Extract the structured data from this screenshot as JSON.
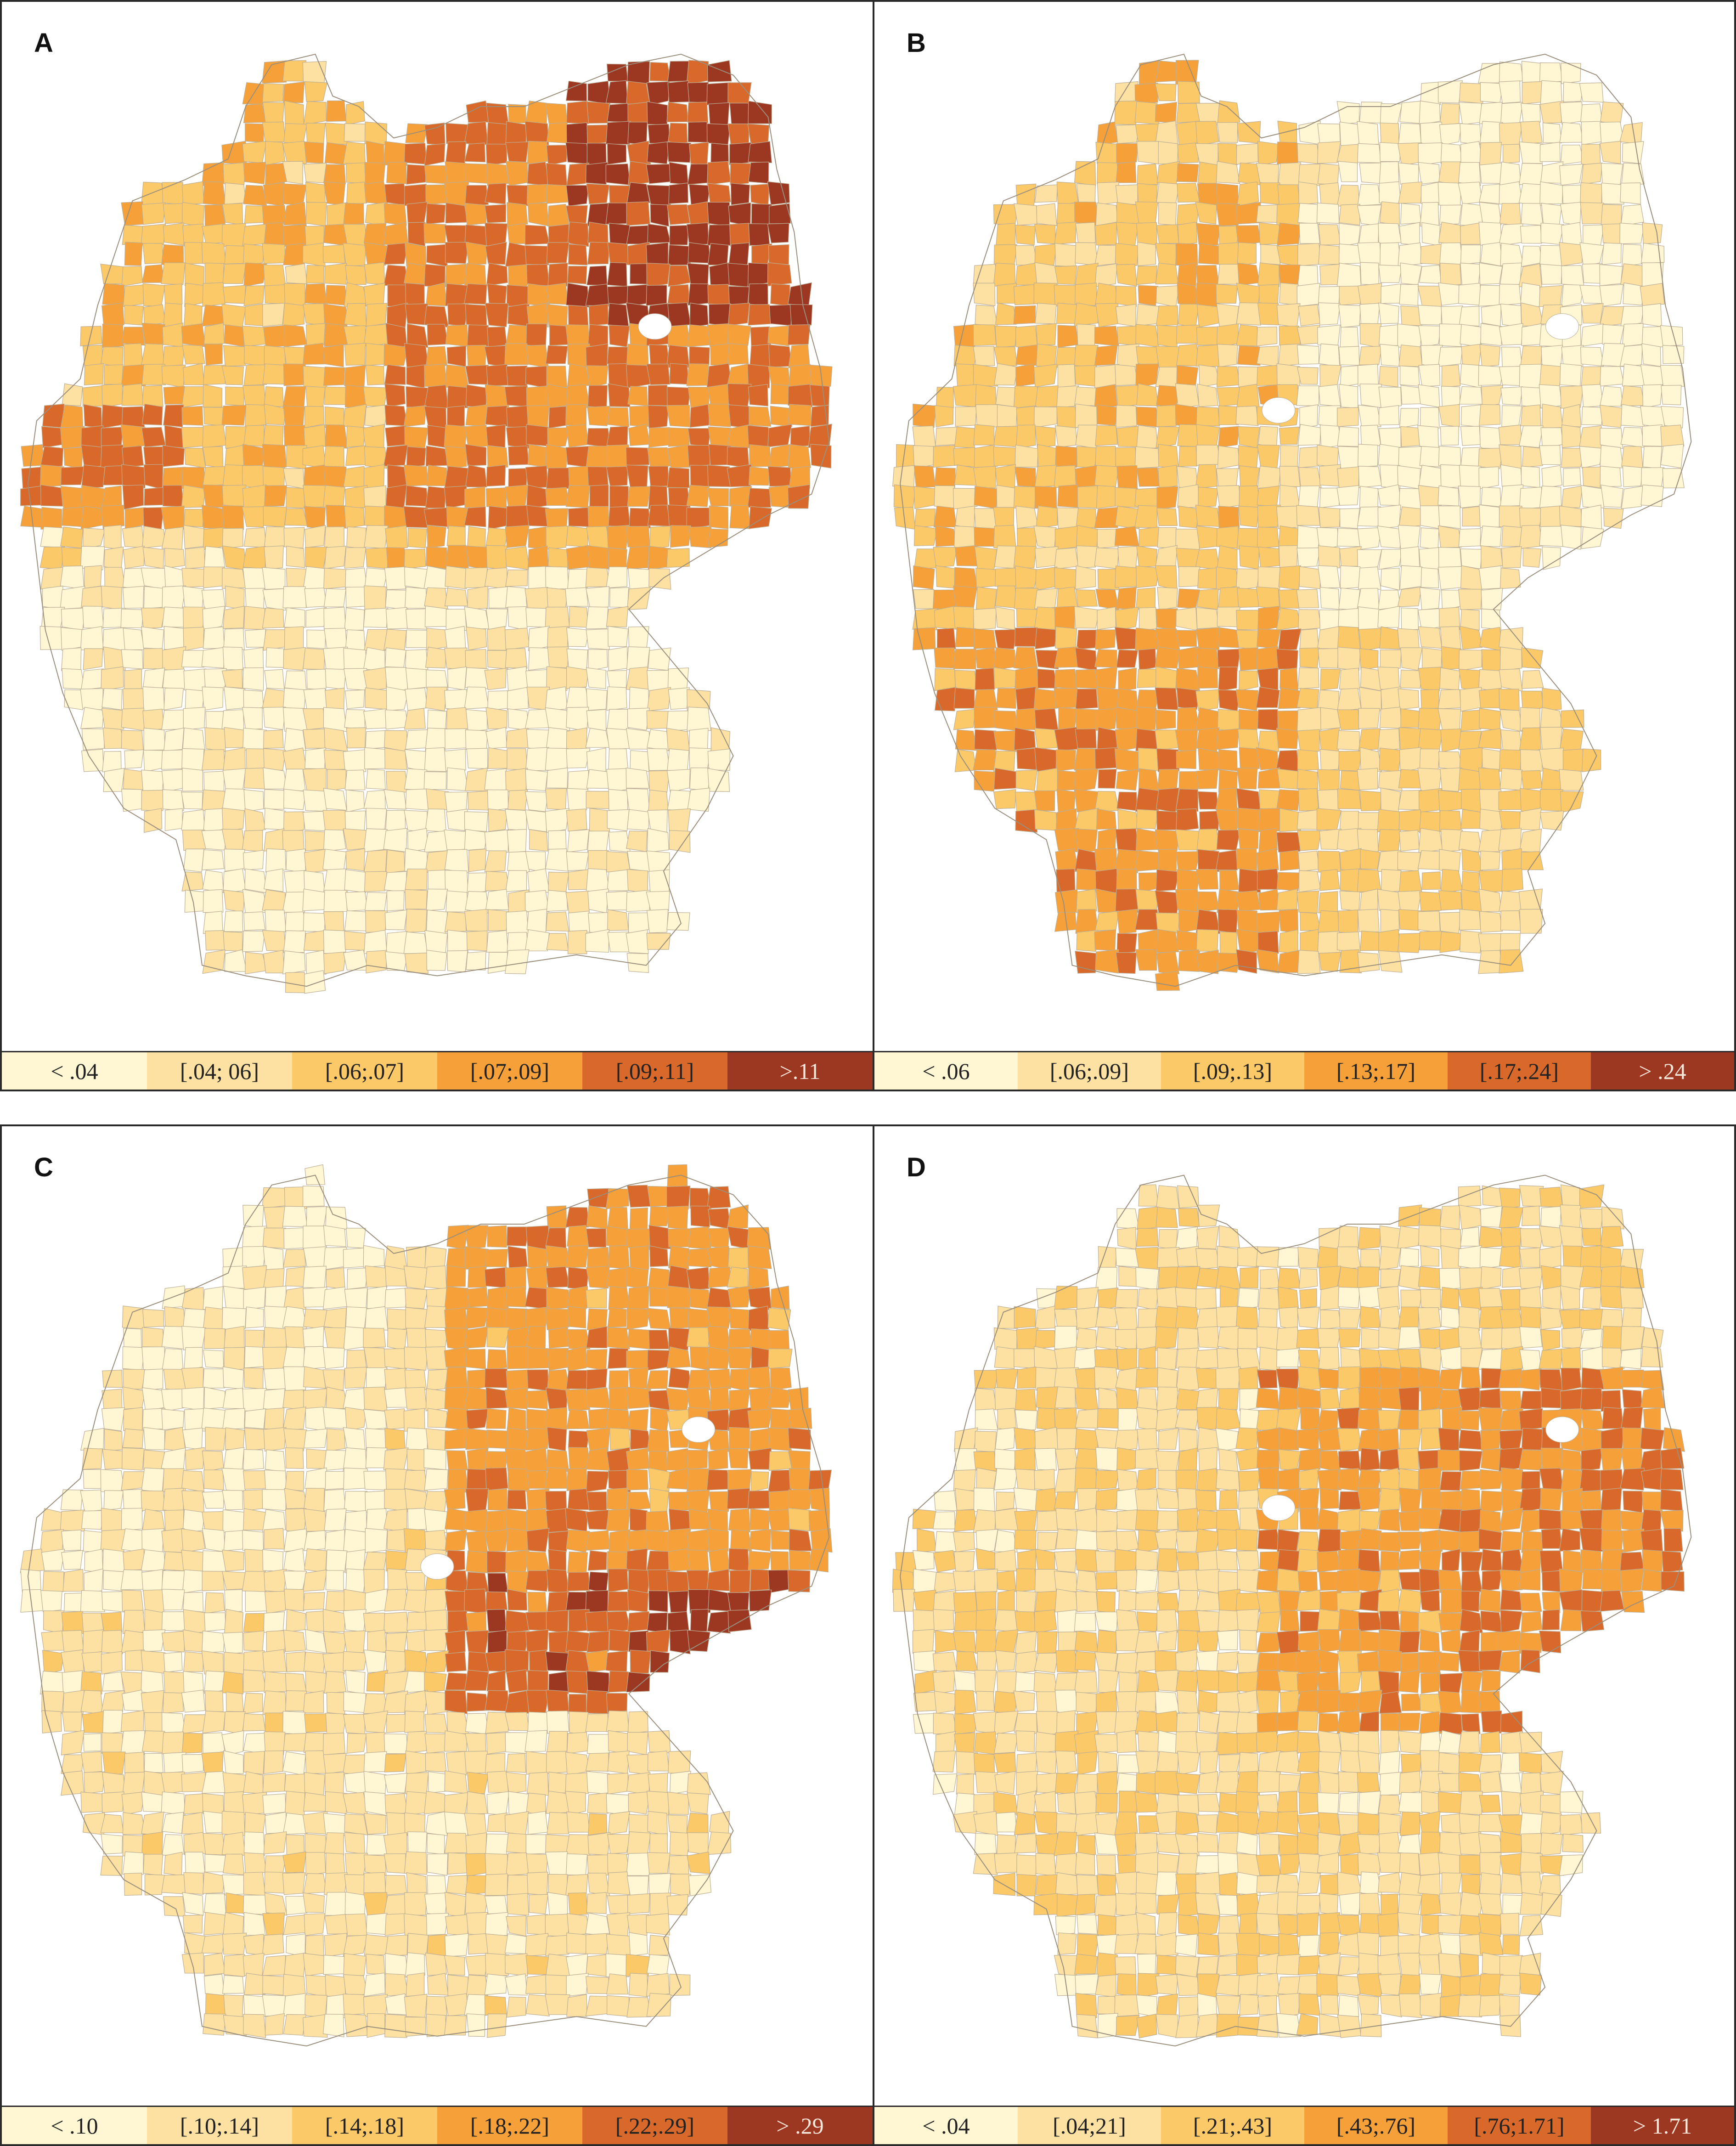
{
  "palette": [
    "#fff6d3",
    "#fde1a3",
    "#fcc969",
    "#f6a03a",
    "#d9692a",
    "#9c3722"
  ],
  "panels": [
    {
      "id": "A",
      "label": "A",
      "legend": [
        "< .04",
        "[.04; 06]",
        "[.06;.07]",
        "[.07;.09]",
        "[.09;.11]",
        ">.11"
      ]
    },
    {
      "id": "B",
      "label": "B",
      "legend": [
        "< .06",
        "[.06;.09]",
        "[.09;.13]",
        "[.13;.17]",
        "[.17;.24]",
        "> .24"
      ]
    },
    {
      "id": "C",
      "label": "C",
      "legend": [
        "< .10",
        "[.10;.14]",
        "[.14;.18]",
        "[.18;.22]",
        "[.22;.29]",
        "> .29"
      ]
    },
    {
      "id": "D",
      "label": "D",
      "legend": [
        "< .04",
        "[.04;21]",
        "[.21;.43]",
        "[.43;.76]",
        "[.76;1.71]",
        "> 1.71"
      ]
    }
  ],
  "map_patterns": {
    "A": "east-north-high",
    "B": "west-south-high",
    "C": "east-high",
    "D": "east-center-high"
  }
}
